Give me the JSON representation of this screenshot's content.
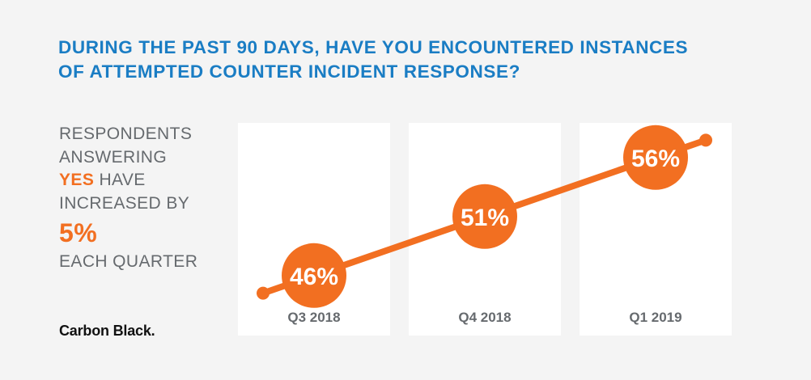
{
  "title_lines": [
    "DURING THE PAST 90 DAYS, HAVE YOU ENCOUNTERED INSTANCES",
    "OF ATTEMPTED COUNTER INCIDENT RESPONSE?"
  ],
  "side": {
    "line1": "RESPONDENTS",
    "line2": "ANSWERING",
    "line3_accent": "YES",
    "line3_rest": " HAVE",
    "line4": "INCREASED BY",
    "big_value": "5%",
    "line6": "EACH QUARTER"
  },
  "logo_text": "Carbon Black.",
  "colors": {
    "accent": "#f26f21",
    "title": "#1a7dc4",
    "text": "#666a6e",
    "panel": "#ffffff",
    "background": "#f4f4f4"
  },
  "chart_data": {
    "type": "line",
    "categories": [
      "Q3 2018",
      "Q4 2018",
      "Q1 2019"
    ],
    "values": [
      46,
      51,
      56
    ],
    "data_labels": [
      "46%",
      "51%",
      "56%"
    ],
    "ylim": [
      40,
      60
    ],
    "grid": false,
    "legend": "none"
  }
}
